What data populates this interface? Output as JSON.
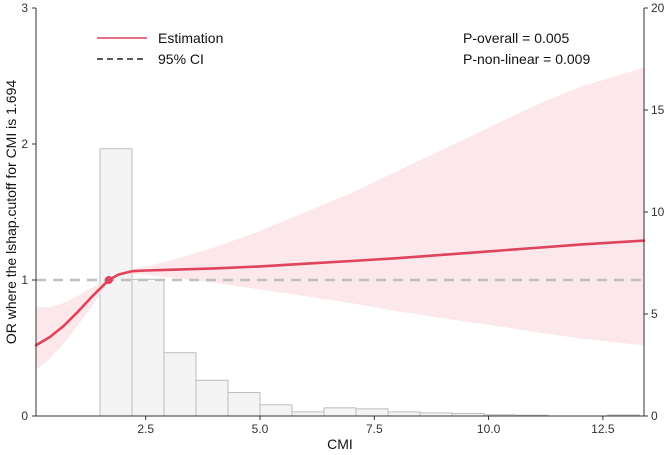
{
  "chart_data": {
    "type": "line",
    "title": "",
    "xlabel": "CMI",
    "ylabel": "OR where the lshap.cutoff for CMI is 1.694",
    "xlim": [
      0.1,
      13.4
    ],
    "ylim": [
      0,
      3
    ],
    "y2lim": [
      0,
      20
    ],
    "x_ticks": [
      {
        "value": 2.5,
        "label": "2.5"
      },
      {
        "value": 5.0,
        "label": "5.0"
      },
      {
        "value": 7.5,
        "label": "7.5"
      },
      {
        "value": 10.0,
        "label": "10.0"
      },
      {
        "value": 12.5,
        "label": "12.5"
      }
    ],
    "y_ticks": [
      {
        "value": 0,
        "label": "0"
      },
      {
        "value": 1,
        "label": "1"
      },
      {
        "value": 2,
        "label": "2"
      },
      {
        "value": 3,
        "label": "3"
      }
    ],
    "y2_ticks": [
      {
        "value": 0,
        "label": "0"
      },
      {
        "value": 5,
        "label": "5"
      },
      {
        "value": 10,
        "label": "10"
      },
      {
        "value": 15,
        "label": "15"
      },
      {
        "value": 20,
        "label": "20"
      }
    ],
    "reference_line": {
      "y": 1,
      "style": "dashed",
      "color": "#c0c0c0"
    },
    "cutoff_point": {
      "x": 1.694,
      "y": 1.0
    },
    "estimation": {
      "name": "Estimation",
      "color": "#e0435c",
      "x": [
        0.1,
        0.4,
        0.7,
        1.0,
        1.3,
        1.6,
        1.694,
        1.9,
        2.2,
        2.5,
        3.0,
        4.0,
        5.0,
        6.0,
        7.0,
        8.0,
        9.0,
        10.0,
        11.0,
        12.0,
        13.4
      ],
      "y": [
        0.52,
        0.58,
        0.66,
        0.76,
        0.87,
        0.97,
        1.0,
        1.04,
        1.065,
        1.07,
        1.075,
        1.085,
        1.1,
        1.12,
        1.14,
        1.16,
        1.185,
        1.21,
        1.235,
        1.26,
        1.29
      ]
    },
    "ci": {
      "name": "95% CI",
      "color": "#fbe3e6",
      "x": [
        0.1,
        0.4,
        0.7,
        1.0,
        1.3,
        1.6,
        1.694,
        1.9,
        2.2,
        2.5,
        3.0,
        4.0,
        5.0,
        6.0,
        7.0,
        8.0,
        9.0,
        10.0,
        11.0,
        12.0,
        13.4
      ],
      "lower": [
        0.34,
        0.42,
        0.53,
        0.66,
        0.8,
        0.94,
        1.0,
        1.03,
        1.045,
        1.04,
        1.02,
        0.98,
        0.93,
        0.88,
        0.83,
        0.77,
        0.72,
        0.67,
        0.62,
        0.57,
        0.52
      ],
      "upper": [
        0.8,
        0.8,
        0.83,
        0.88,
        0.94,
        0.99,
        1.0,
        1.05,
        1.08,
        1.1,
        1.14,
        1.24,
        1.36,
        1.5,
        1.64,
        1.8,
        1.96,
        2.12,
        2.28,
        2.42,
        2.56
      ]
    },
    "histogram": {
      "axis": "right",
      "bin_width": 0.7,
      "bins": [
        {
          "x0": 1.5,
          "count": 13.1
        },
        {
          "x0": 2.2,
          "count": 6.7
        },
        {
          "x0": 2.9,
          "count": 3.1
        },
        {
          "x0": 3.6,
          "count": 1.75
        },
        {
          "x0": 4.3,
          "count": 1.15
        },
        {
          "x0": 5.0,
          "count": 0.55
        },
        {
          "x0": 5.7,
          "count": 0.2
        },
        {
          "x0": 6.4,
          "count": 0.4
        },
        {
          "x0": 7.1,
          "count": 0.35
        },
        {
          "x0": 7.8,
          "count": 0.2
        },
        {
          "x0": 8.5,
          "count": 0.15
        },
        {
          "x0": 9.2,
          "count": 0.12
        },
        {
          "x0": 9.9,
          "count": 0.06
        },
        {
          "x0": 10.6,
          "count": 0.04
        },
        {
          "x0": 12.6,
          "count": 0.05
        }
      ]
    },
    "legend": {
      "position": "top-left",
      "entries": [
        {
          "label": "Estimation",
          "style": "solid",
          "color": "#e0435c"
        },
        {
          "label": "95% CI",
          "style": "dashed",
          "color": "#222222"
        }
      ]
    },
    "annotations": [
      "P-overall = 0.005",
      "P-non-linear = 0.009"
    ],
    "colors": {
      "axis": "#333333",
      "bar_fill": "#f4f4f4",
      "bar_stroke": "#bdbdbd"
    }
  }
}
